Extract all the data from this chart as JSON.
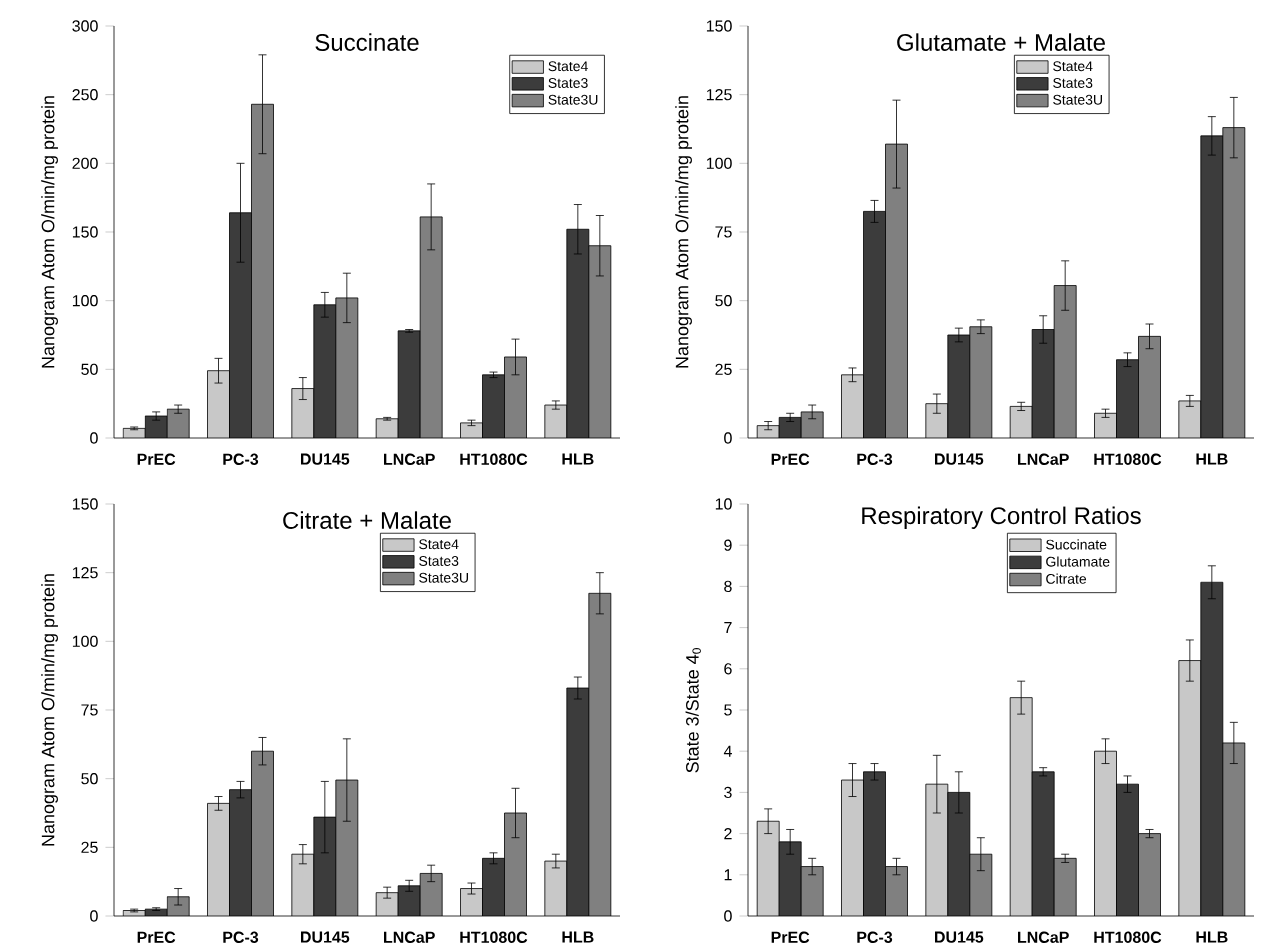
{
  "chart_data": [
    {
      "type": "bar",
      "title": "Succinate",
      "ylabel": "Nanogram Atom O/min/mg protein",
      "categories": [
        "PrEC",
        "PC-3",
        "DU145",
        "LNCaP",
        "HT1080C",
        "HLB"
      ],
      "ylim": [
        0,
        300
      ],
      "yticks": [
        0,
        50,
        100,
        150,
        200,
        250,
        300
      ],
      "legend": "top right",
      "series": [
        {
          "name": "State4",
          "color": "#c8c8c8",
          "values": [
            7,
            49,
            36,
            14,
            11,
            24
          ],
          "errors": [
            1,
            9,
            8,
            1,
            2,
            3
          ]
        },
        {
          "name": "State3",
          "color": "#3c3c3c",
          "values": [
            16,
            164,
            97,
            78,
            46,
            152
          ],
          "errors": [
            3,
            36,
            9,
            1,
            2,
            18
          ]
        },
        {
          "name": "State3U",
          "color": "#808080",
          "values": [
            21,
            243,
            102,
            161,
            59,
            140
          ],
          "errors": [
            3,
            36,
            18,
            24,
            13,
            22
          ]
        }
      ]
    },
    {
      "type": "bar",
      "title": "Glutamate + Malate",
      "ylabel": "Nanogram Atom O/min/mg protein",
      "categories": [
        "PrEC",
        "PC-3",
        "DU145",
        "LNCaP",
        "HT1080C",
        "HLB"
      ],
      "ylim": [
        0,
        150
      ],
      "yticks": [
        0,
        25,
        50,
        75,
        100,
        125,
        150
      ],
      "legend": "top",
      "series": [
        {
          "name": "State4",
          "color": "#c8c8c8",
          "values": [
            4.5,
            23,
            12.5,
            11.5,
            9,
            13.5
          ],
          "errors": [
            1.5,
            2.5,
            3.5,
            1.5,
            1.5,
            2
          ]
        },
        {
          "name": "State3",
          "color": "#3c3c3c",
          "values": [
            7.5,
            82.5,
            37.5,
            39.5,
            28.5,
            110
          ],
          "errors": [
            1.5,
            4,
            2.5,
            5,
            2.5,
            7
          ]
        },
        {
          "name": "State3U",
          "color": "#808080",
          "values": [
            9.5,
            107,
            40.5,
            55.5,
            37,
            113
          ],
          "errors": [
            2.5,
            16,
            2.5,
            9,
            4.5,
            11
          ]
        }
      ]
    },
    {
      "type": "bar",
      "title": "Citrate + Malate",
      "ylabel": "Nanogram Atom O/min/mg protein",
      "categories": [
        "PrEC",
        "PC-3",
        "DU145",
        "LNCaP",
        "HT1080C",
        "HLB"
      ],
      "ylim": [
        0,
        150
      ],
      "yticks": [
        0,
        25,
        50,
        75,
        100,
        125,
        150
      ],
      "legend": "top",
      "series": [
        {
          "name": "State4",
          "color": "#c8c8c8",
          "values": [
            2,
            41,
            22.5,
            8.5,
            10,
            20
          ],
          "errors": [
            0.5,
            2.5,
            3.5,
            2,
            2,
            2.5
          ]
        },
        {
          "name": "State3",
          "color": "#3c3c3c",
          "values": [
            2.5,
            46,
            36,
            11,
            21,
            83
          ],
          "errors": [
            0.5,
            3,
            13,
            2,
            2,
            4
          ]
        },
        {
          "name": "State3U",
          "color": "#808080",
          "values": [
            7,
            60,
            49.5,
            15.5,
            37.5,
            117.5
          ],
          "errors": [
            3,
            5,
            15,
            3,
            9,
            7.5
          ]
        }
      ]
    },
    {
      "type": "bar",
      "title": "Respiratory Control Ratios",
      "ylabel": "State 3/State 4$_{0}$",
      "categories": [
        "PrEC",
        "PC-3",
        "DU145",
        "LNCaP",
        "HT1080C",
        "HLB"
      ],
      "ylim": [
        0,
        10
      ],
      "yticks": [
        0,
        1,
        2,
        3,
        4,
        5,
        6,
        7,
        8,
        9,
        10
      ],
      "legend": "top",
      "series": [
        {
          "name": "Succinate",
          "color": "#c8c8c8",
          "values": [
            2.3,
            3.3,
            3.2,
            5.3,
            4.0,
            6.2
          ],
          "errors": [
            0.3,
            0.4,
            0.7,
            0.4,
            0.3,
            0.5
          ]
        },
        {
          "name": "Glutamate",
          "color": "#3c3c3c",
          "values": [
            1.8,
            3.5,
            3.0,
            3.5,
            3.2,
            8.1
          ],
          "errors": [
            0.3,
            0.2,
            0.5,
            0.1,
            0.2,
            0.4
          ]
        },
        {
          "name": "Citrate",
          "color": "#808080",
          "values": [
            1.2,
            1.2,
            1.5,
            1.4,
            2.0,
            4.2
          ],
          "errors": [
            0.2,
            0.2,
            0.4,
            0.1,
            0.1,
            0.5
          ]
        }
      ]
    }
  ]
}
